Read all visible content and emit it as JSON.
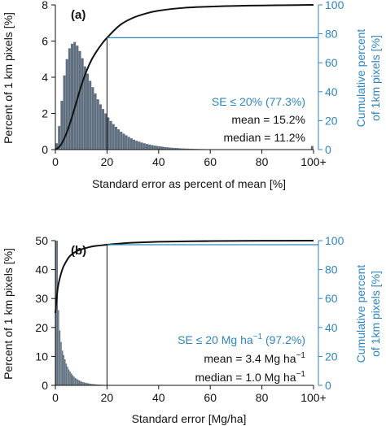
{
  "colors": {
    "histogram": "#5f6f80",
    "cumulative_line": "#111111",
    "accent": "#2e86c1",
    "axis": "#111111"
  },
  "chart_data": [
    {
      "type": "bar",
      "panel_label": "(a)",
      "xlabel": "Standard error as percent of mean [%]",
      "ylabel": "Percent of 1 km pixels [%]",
      "ylabel_right": "Cumulative percent of 1km pixels [%]",
      "ylabel_right_lines": [
        "Cumulative percent",
        "of 1km pixels [%]"
      ],
      "xlim": [
        0,
        100
      ],
      "ylim": [
        0,
        8
      ],
      "ylim_right": [
        0,
        100
      ],
      "xticks": [
        "0",
        "20",
        "40",
        "60",
        "80",
        "100+"
      ],
      "yticks": [
        "0",
        "2",
        "4",
        "6",
        "8"
      ],
      "yticks_right": [
        "0",
        "20",
        "40",
        "60",
        "80",
        "100"
      ],
      "bin_width": 1,
      "bins_start": [
        0,
        1,
        2,
        3,
        4,
        5,
        6,
        7,
        8,
        9,
        10,
        11,
        12,
        13,
        14,
        15,
        16,
        17,
        18,
        19,
        20,
        21,
        22,
        23,
        24,
        25,
        26,
        27,
        28,
        29,
        30,
        31,
        32,
        33,
        34,
        35,
        36,
        37,
        38,
        39,
        40,
        41,
        42,
        43,
        44,
        45,
        46,
        47,
        48,
        49,
        50,
        51,
        52,
        53,
        54,
        55,
        56,
        57,
        58,
        59,
        60,
        61,
        62,
        63,
        64,
        65,
        66,
        67,
        68,
        69,
        70,
        71,
        72,
        73,
        74,
        75,
        76,
        77,
        78,
        79,
        80,
        81,
        82,
        83,
        84,
        85,
        86,
        87,
        88,
        89,
        90,
        91,
        92,
        93,
        94,
        95,
        96,
        97,
        98,
        99
      ],
      "values": [
        0.35,
        1.3,
        2.7,
        4.1,
        5.0,
        5.6,
        5.85,
        5.95,
        5.75,
        5.45,
        5.05,
        4.6,
        4.2,
        3.8,
        3.45,
        3.1,
        2.78,
        2.5,
        2.24,
        2.0,
        1.78,
        1.58,
        1.41,
        1.26,
        1.12,
        0.99,
        0.88,
        0.79,
        0.7,
        0.62,
        0.55,
        0.49,
        0.44,
        0.39,
        0.35,
        0.31,
        0.28,
        0.25,
        0.22,
        0.2,
        0.18,
        0.16,
        0.14,
        0.125,
        0.11,
        0.1,
        0.09,
        0.08,
        0.07,
        0.065,
        0.058,
        0.052,
        0.046,
        0.041,
        0.037,
        0.033,
        0.03,
        0.027,
        0.024,
        0.022,
        0.02,
        0.018,
        0.016,
        0.014,
        0.013,
        0.012,
        0.011,
        0.01,
        0.009,
        0.008,
        0.007,
        0.007,
        0.006,
        0.006,
        0.005,
        0.005,
        0.004,
        0.004,
        0.004,
        0.003,
        0.003,
        0.003,
        0.003,
        0.002,
        0.002,
        0.002,
        0.002,
        0.002,
        0.002,
        0.002,
        0.001,
        0.001,
        0.001,
        0.001,
        0.001,
        0.001,
        0.001,
        0.001,
        0.001,
        0.2
      ],
      "cumulative": {
        "x": [
          0,
          2,
          4,
          6,
          8,
          10,
          12,
          14,
          16,
          18,
          20,
          25,
          30,
          35,
          40,
          50,
          60,
          70,
          80,
          90,
          100
        ],
        "y": [
          0,
          3,
          10,
          20,
          32,
          44,
          54,
          62,
          68,
          73,
          77.3,
          86,
          91,
          94,
          96,
          98,
          98.8,
          99.3,
          99.6,
          99.8,
          100
        ]
      },
      "threshold_x": 20,
      "threshold_cumulative": 77.3,
      "annotations": {
        "threshold": "SE ≤ 20% (77.3%)",
        "mean": "mean = 15.2%",
        "median": "median = 11.2%"
      }
    },
    {
      "type": "bar",
      "panel_label": "(b)",
      "xlabel": "Standard error [Mg/ha]",
      "ylabel": "Percent of 1 km pixels [%]",
      "ylabel_right": "Cumulative percent of 1km pixels [%]",
      "ylabel_right_lines": [
        "Cumulative percent",
        "of 1km pixels [%]"
      ],
      "xlim": [
        0,
        100
      ],
      "ylim": [
        0,
        50
      ],
      "ylim_right": [
        0,
        100
      ],
      "xticks": [
        "0",
        "20",
        "40",
        "60",
        "80",
        "100+"
      ],
      "yticks": [
        "0",
        "10",
        "20",
        "30",
        "40",
        "50"
      ],
      "yticks_right": [
        "0",
        "20",
        "40",
        "60",
        "80",
        "100"
      ],
      "bin_width": 0.5,
      "bins_start": [
        0,
        0.5,
        1,
        1.5,
        2,
        2.5,
        3,
        3.5,
        4,
        4.5,
        5,
        5.5,
        6,
        6.5,
        7,
        7.5,
        8,
        8.5,
        9,
        9.5,
        10,
        10.5,
        11,
        11.5,
        12,
        12.5,
        13,
        13.5,
        14,
        14.5,
        15,
        15.5,
        16,
        16.5,
        17,
        17.5,
        18,
        18.5,
        19,
        19.5,
        20,
        21,
        22,
        23,
        24,
        25,
        26,
        27,
        28,
        29,
        30
      ],
      "values": [
        50,
        50,
        26,
        19,
        15,
        12,
        10.5,
        9,
        7.5,
        6.4,
        5.5,
        4.8,
        4.1,
        3.5,
        3.0,
        2.6,
        2.25,
        1.95,
        1.7,
        1.48,
        1.3,
        1.14,
        1.0,
        0.88,
        0.78,
        0.69,
        0.61,
        0.54,
        0.48,
        0.43,
        0.38,
        0.34,
        0.3,
        0.27,
        0.24,
        0.21,
        0.19,
        0.17,
        0.15,
        0.13,
        0.1,
        0.08,
        0.06,
        0.05,
        0.04,
        0.03,
        0.025,
        0.02,
        0.015,
        0.01,
        0.008
      ],
      "cumulative": {
        "x": [
          0,
          0.5,
          1,
          2,
          3,
          4,
          5,
          6,
          8,
          10,
          12,
          15,
          20,
          25,
          30,
          40,
          50,
          60,
          80,
          100
        ],
        "y": [
          50,
          60,
          68,
          76,
          81.5,
          85,
          88,
          90,
          92.5,
          94,
          95,
          96.2,
          97.2,
          98,
          98.6,
          99.2,
          99.5,
          99.7,
          99.9,
          100
        ]
      },
      "threshold_x": 20,
      "threshold_cumulative": 97.2,
      "annotations": {
        "threshold_prefix": "SE ≤ 20 Mg ha",
        "threshold_exp": "−1",
        "threshold_suffix": " (97.2%)",
        "mean_prefix": "mean = 3.4 Mg ha",
        "mean_exp": "−1",
        "median_prefix": "median = 1.0 Mg ha",
        "median_exp": "−1"
      }
    }
  ]
}
